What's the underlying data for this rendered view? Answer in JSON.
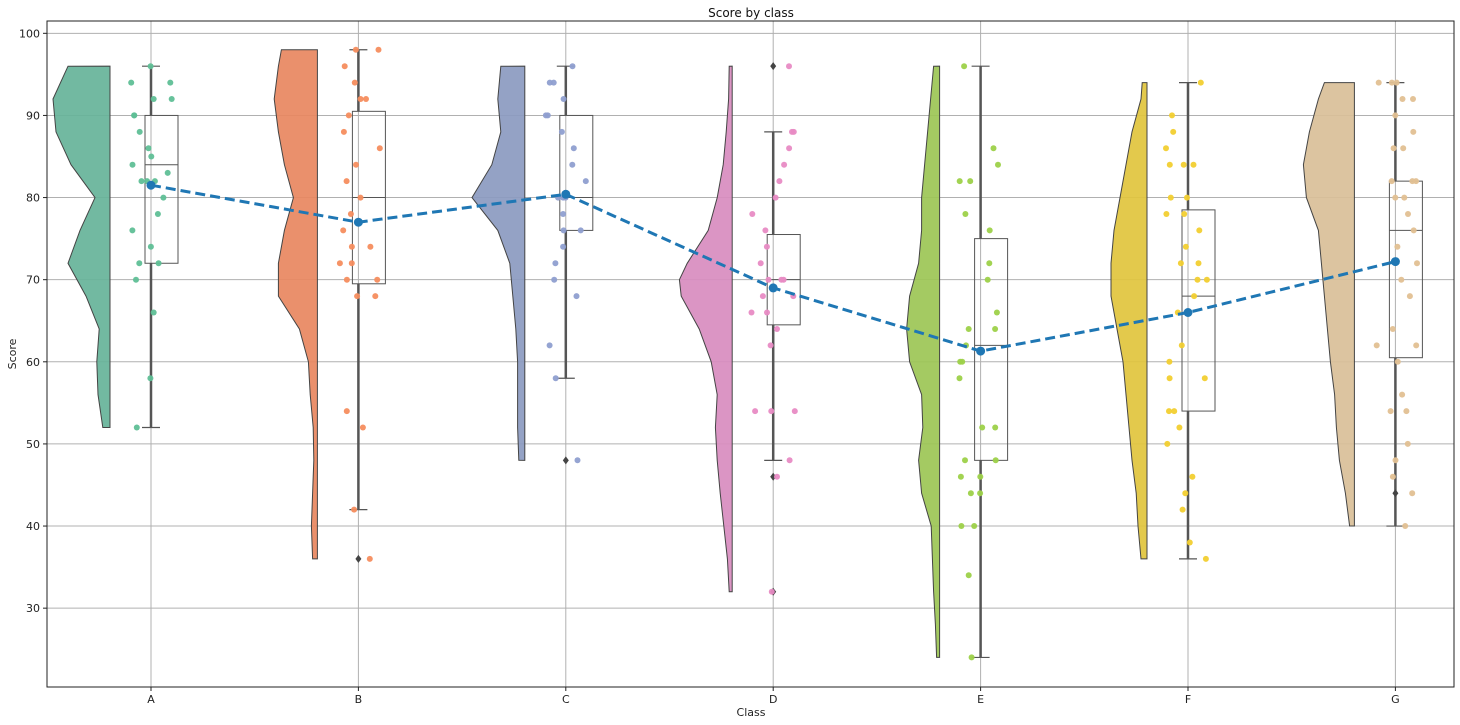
{
  "chart_data": {
    "type": "raincloud",
    "title": "Score by class",
    "xlabel": "Class",
    "ylabel": "Score",
    "categories": [
      "A",
      "B",
      "C",
      "D",
      "E",
      "F",
      "G"
    ],
    "yticks": [
      30,
      40,
      50,
      60,
      70,
      80,
      90,
      100
    ],
    "ylim": [
      20.4,
      101.5
    ],
    "grid": true,
    "colors": {
      "violin": [
        "#66b399",
        "#e8875f",
        "#8b9ac0",
        "#d88cbf",
        "#9cc655",
        "#e1c43d",
        "#d9bf98"
      ],
      "points": [
        "#5fbf96",
        "#f58d5e",
        "#8f9fd0",
        "#e88bc4",
        "#9dd149",
        "#f2cf30",
        "#e2c092"
      ],
      "mean": "#1f77b4"
    },
    "mean_line": {
      "values": [
        81.5,
        77.0,
        80.4,
        69.0,
        61.3,
        66.0,
        72.2
      ],
      "style": "dashed"
    },
    "boxes": [
      {
        "whisker_low": 52,
        "q1": 72,
        "median": 84,
        "q3": 90,
        "whisker_high": 96,
        "outliers": []
      },
      {
        "whisker_low": 42,
        "q1": 69.5,
        "median": 80,
        "q3": 90.5,
        "whisker_high": 98,
        "outliers": [
          36
        ]
      },
      {
        "whisker_low": 58,
        "q1": 76,
        "median": 80,
        "q3": 90,
        "whisker_high": 96,
        "outliers": [
          48
        ]
      },
      {
        "whisker_low": 48,
        "q1": 64.5,
        "median": 70,
        "q3": 75.5,
        "whisker_high": 88,
        "outliers": [
          96,
          46,
          32
        ]
      },
      {
        "whisker_low": 24,
        "q1": 48,
        "median": 62,
        "q3": 75,
        "whisker_high": 96,
        "outliers": []
      },
      {
        "whisker_low": 36,
        "q1": 54,
        "median": 68,
        "q3": 78.5,
        "whisker_high": 94,
        "outliers": []
      },
      {
        "whisker_low": 40,
        "q1": 60.5,
        "median": 76,
        "q3": 82,
        "whisker_high": 94,
        "outliers": [
          44
        ]
      }
    ],
    "violins": [
      {
        "min": 52,
        "max": 96,
        "density": [
          [
            52,
            0.12
          ],
          [
            56,
            0.2
          ],
          [
            60,
            0.22
          ],
          [
            64,
            0.18
          ],
          [
            68,
            0.4
          ],
          [
            72,
            0.7
          ],
          [
            76,
            0.5
          ],
          [
            80,
            0.25
          ],
          [
            84,
            0.65
          ],
          [
            88,
            0.9
          ],
          [
            92,
            0.95
          ],
          [
            96,
            0.7
          ]
        ]
      },
      {
        "min": 36,
        "max": 98,
        "density": [
          [
            36,
            0.08
          ],
          [
            40,
            0.1
          ],
          [
            44,
            0.08
          ],
          [
            48,
            0.06
          ],
          [
            52,
            0.07
          ],
          [
            56,
            0.12
          ],
          [
            60,
            0.15
          ],
          [
            64,
            0.3
          ],
          [
            68,
            0.65
          ],
          [
            72,
            0.65
          ],
          [
            76,
            0.55
          ],
          [
            80,
            0.4
          ],
          [
            84,
            0.55
          ],
          [
            88,
            0.65
          ],
          [
            92,
            0.72
          ],
          [
            96,
            0.65
          ],
          [
            98,
            0.6
          ]
        ]
      },
      {
        "min": 48,
        "max": 96,
        "density": [
          [
            48,
            0.1
          ],
          [
            52,
            0.12
          ],
          [
            56,
            0.12
          ],
          [
            60,
            0.12
          ],
          [
            64,
            0.15
          ],
          [
            68,
            0.2
          ],
          [
            72,
            0.25
          ],
          [
            76,
            0.45
          ],
          [
            80,
            0.88
          ],
          [
            84,
            0.55
          ],
          [
            88,
            0.4
          ],
          [
            92,
            0.45
          ],
          [
            96,
            0.4
          ]
        ]
      },
      {
        "min": 32,
        "max": 96,
        "density": [
          [
            32,
            0.05
          ],
          [
            36,
            0.08
          ],
          [
            40,
            0.14
          ],
          [
            44,
            0.2
          ],
          [
            48,
            0.25
          ],
          [
            52,
            0.28
          ],
          [
            56,
            0.25
          ],
          [
            60,
            0.35
          ],
          [
            64,
            0.55
          ],
          [
            68,
            0.85
          ],
          [
            70,
            0.88
          ],
          [
            72,
            0.75
          ],
          [
            76,
            0.4
          ],
          [
            80,
            0.25
          ],
          [
            84,
            0.15
          ],
          [
            88,
            0.1
          ],
          [
            92,
            0.06
          ],
          [
            96,
            0.05
          ]
        ]
      },
      {
        "min": 24,
        "max": 96,
        "density": [
          [
            24,
            0.05
          ],
          [
            28,
            0.07
          ],
          [
            32,
            0.1
          ],
          [
            36,
            0.12
          ],
          [
            40,
            0.14
          ],
          [
            44,
            0.3
          ],
          [
            48,
            0.35
          ],
          [
            52,
            0.28
          ],
          [
            56,
            0.3
          ],
          [
            60,
            0.5
          ],
          [
            64,
            0.55
          ],
          [
            68,
            0.5
          ],
          [
            72,
            0.35
          ],
          [
            76,
            0.3
          ],
          [
            80,
            0.3
          ],
          [
            84,
            0.25
          ],
          [
            88,
            0.2
          ],
          [
            92,
            0.15
          ],
          [
            96,
            0.1
          ]
        ]
      },
      {
        "min": 36,
        "max": 94,
        "density": [
          [
            36,
            0.1
          ],
          [
            40,
            0.15
          ],
          [
            44,
            0.18
          ],
          [
            48,
            0.25
          ],
          [
            52,
            0.3
          ],
          [
            56,
            0.35
          ],
          [
            60,
            0.4
          ],
          [
            64,
            0.5
          ],
          [
            68,
            0.6
          ],
          [
            72,
            0.6
          ],
          [
            76,
            0.55
          ],
          [
            80,
            0.45
          ],
          [
            84,
            0.35
          ],
          [
            88,
            0.25
          ],
          [
            92,
            0.1
          ],
          [
            94,
            0.08
          ]
        ]
      },
      {
        "min": 40,
        "max": 94,
        "density": [
          [
            40,
            0.08
          ],
          [
            44,
            0.15
          ],
          [
            48,
            0.25
          ],
          [
            52,
            0.3
          ],
          [
            56,
            0.33
          ],
          [
            60,
            0.4
          ],
          [
            64,
            0.45
          ],
          [
            68,
            0.5
          ],
          [
            72,
            0.55
          ],
          [
            76,
            0.6
          ],
          [
            80,
            0.8
          ],
          [
            84,
            0.85
          ],
          [
            88,
            0.75
          ],
          [
            92,
            0.6
          ],
          [
            94,
            0.5
          ]
        ]
      }
    ],
    "points": [
      [
        96,
        92,
        90,
        88,
        86,
        85,
        84,
        83,
        82,
        82,
        82,
        80,
        78,
        76,
        74,
        72,
        72,
        70,
        66,
        58,
        52,
        94,
        94,
        92,
        90
      ],
      [
        98,
        98,
        96,
        94,
        92,
        92,
        90,
        88,
        86,
        84,
        82,
        80,
        78,
        76,
        74,
        74,
        72,
        72,
        70,
        70,
        68,
        68,
        54,
        52,
        42,
        36
      ],
      [
        96,
        94,
        94,
        92,
        90,
        90,
        88,
        86,
        84,
        82,
        80,
        80,
        80,
        78,
        76,
        76,
        74,
        72,
        70,
        68,
        62,
        58,
        48
      ],
      [
        96,
        88,
        88,
        86,
        84,
        82,
        80,
        78,
        76,
        74,
        72,
        70,
        70,
        70,
        68,
        68,
        66,
        66,
        64,
        62,
        54,
        54,
        54,
        48,
        46,
        32
      ],
      [
        96,
        86,
        84,
        82,
        82,
        78,
        76,
        72,
        70,
        66,
        64,
        64,
        62,
        60,
        60,
        58,
        52,
        52,
        48,
        48,
        46,
        46,
        44,
        44,
        40,
        40,
        34,
        24
      ],
      [
        94,
        90,
        88,
        86,
        84,
        84,
        84,
        80,
        80,
        78,
        78,
        76,
        74,
        72,
        72,
        70,
        70,
        68,
        66,
        62,
        60,
        58,
        58,
        54,
        54,
        52,
        50,
        46,
        44,
        42,
        38,
        36
      ],
      [
        94,
        94,
        94,
        92,
        92,
        90,
        88,
        86,
        86,
        82,
        82,
        82,
        80,
        80,
        78,
        76,
        74,
        72,
        70,
        68,
        64,
        62,
        62,
        60,
        56,
        54,
        54,
        50,
        48,
        46,
        44,
        40
      ]
    ]
  }
}
